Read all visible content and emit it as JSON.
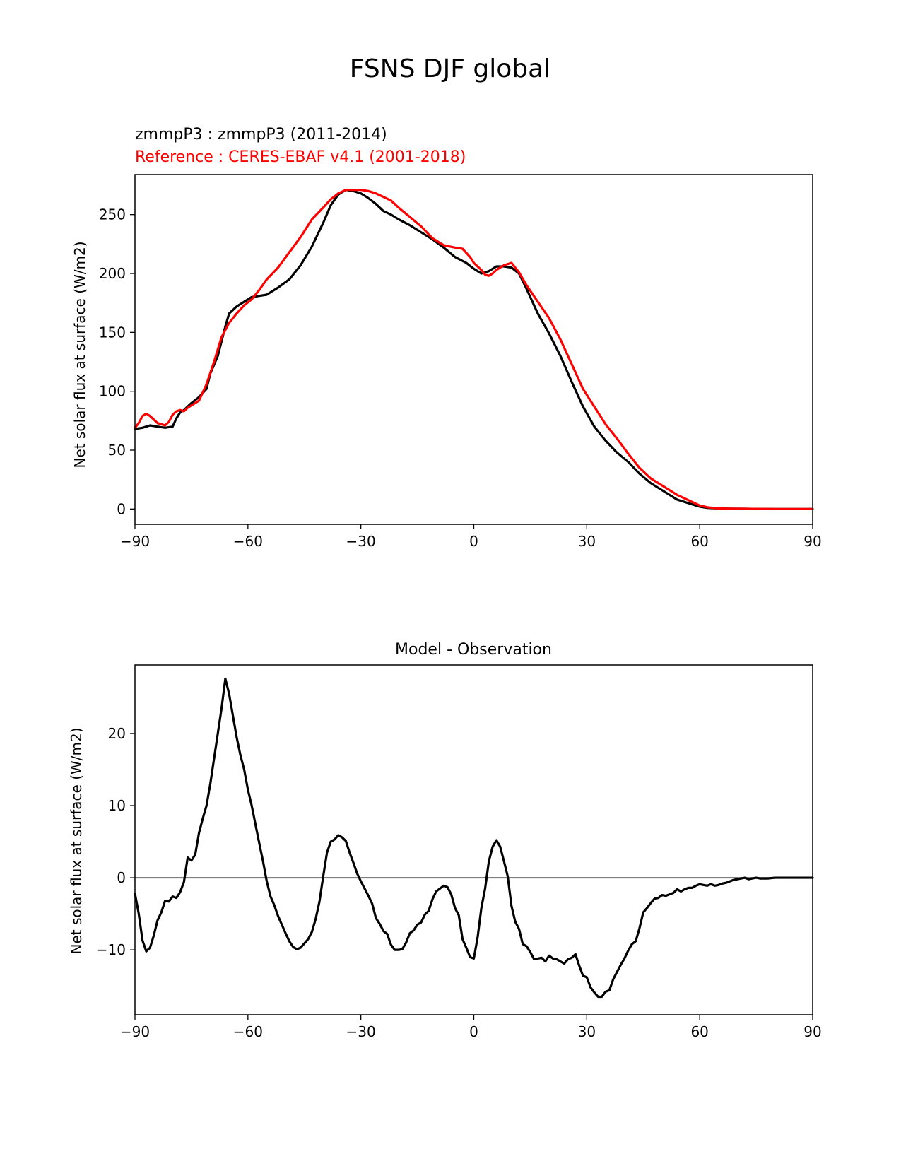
{
  "figure_title": "FSNS DJF global",
  "chart_data": [
    {
      "type": "line",
      "subtitle_test": "zmmpP3 : zmmpP3 (2011-2014)",
      "subtitle_ref": "Reference : CERES-EBAF v4.1 (2001-2018)",
      "xlabel": "",
      "ylabel": "Net solar flux at surface (W/m2)",
      "xlim": [
        -90,
        90
      ],
      "ylim": [
        -13,
        284
      ],
      "xticks": [
        -90,
        -60,
        -30,
        0,
        30,
        60,
        90
      ],
      "xtick_labels": [
        "−90",
        "−60",
        "−30",
        "0",
        "30",
        "60",
        "90"
      ],
      "yticks": [
        0,
        50,
        100,
        150,
        200,
        250
      ],
      "ytick_labels": [
        "0",
        "50",
        "100",
        "150",
        "200",
        "250"
      ],
      "grid": false,
      "series": [
        {
          "color": "#000000",
          "x": [
            -90,
            -88,
            -86,
            -84,
            -82,
            -80,
            -79,
            -78,
            -77,
            -75,
            -73,
            -71,
            -70,
            -68,
            -66,
            -65,
            -63,
            -61,
            -59,
            -57,
            -55,
            -52,
            -49,
            -46,
            -43,
            -40,
            -38,
            -36,
            -34,
            -32,
            -30,
            -28,
            -26,
            -24,
            -22,
            -20,
            -17,
            -14,
            -11,
            -8,
            -5,
            -2,
            0,
            2,
            4,
            6,
            8,
            10,
            12,
            14,
            17,
            20,
            23,
            26,
            29,
            32,
            35,
            38,
            41,
            44,
            47,
            50,
            54,
            58,
            60,
            62,
            65,
            68,
            72,
            76,
            80,
            85,
            90
          ],
          "y": [
            68,
            69,
            71,
            70,
            69,
            70,
            77,
            82,
            84,
            90,
            95,
            102,
            115,
            130,
            155,
            166,
            172,
            176,
            180,
            181,
            182,
            188,
            195,
            207,
            223,
            243,
            258,
            267,
            271,
            270,
            268,
            264,
            259,
            253,
            250,
            246,
            241,
            235,
            229,
            222,
            214,
            209,
            204,
            200,
            202,
            206,
            206,
            205,
            200,
            187,
            166,
            149,
            130,
            108,
            87,
            70,
            58,
            48,
            40,
            30,
            22,
            16,
            8,
            4,
            2,
            1,
            0.5,
            0.3,
            0.2,
            0.1,
            0,
            0,
            0
          ]
        },
        {
          "color": "#ff0000",
          "x": [
            -90,
            -89,
            -88,
            -87,
            -86,
            -85,
            -84,
            -83,
            -82,
            -81,
            -80,
            -79,
            -78,
            -77,
            -76,
            -75,
            -73,
            -71,
            -69,
            -67,
            -65,
            -63,
            -61,
            -59,
            -57,
            -55,
            -52,
            -49,
            -46,
            -43,
            -40,
            -38,
            -36,
            -34,
            -32,
            -30,
            -28,
            -26,
            -24,
            -22,
            -20,
            -17,
            -14,
            -11,
            -8,
            -5,
            -3,
            -1,
            0,
            2,
            3,
            4,
            5,
            6,
            8,
            10,
            11,
            12,
            14,
            17,
            20,
            23,
            26,
            29,
            32,
            35,
            38,
            41,
            44,
            47,
            50,
            54,
            58,
            60,
            62,
            65,
            68,
            72,
            76,
            80,
            85,
            90
          ],
          "y": [
            69,
            73,
            79,
            81,
            79,
            76,
            73,
            72,
            71,
            74,
            80,
            83,
            84,
            83,
            86,
            88,
            92,
            106,
            125,
            146,
            158,
            166,
            173,
            178,
            186,
            195,
            205,
            218,
            231,
            246,
            256,
            263,
            268,
            271,
            271,
            271,
            270,
            268,
            265,
            262,
            256,
            248,
            240,
            230,
            224,
            222,
            221,
            214,
            209,
            203,
            199,
            198,
            200,
            203,
            207,
            209,
            205,
            201,
            190,
            176,
            162,
            144,
            123,
            102,
            87,
            72,
            60,
            47,
            35,
            26,
            20,
            12,
            6,
            3,
            1.5,
            0.5,
            0.3,
            0.2,
            0.1,
            0,
            0,
            0
          ]
        }
      ]
    },
    {
      "type": "line",
      "title": "Model - Observation",
      "xlabel": "",
      "ylabel": "Net solar flux at surface (W/m2)",
      "xlim": [
        -90,
        90
      ],
      "ylim": [
        -19,
        29.5
      ],
      "xticks": [
        -90,
        -60,
        -30,
        0,
        30,
        60,
        90
      ],
      "xtick_labels": [
        "−90",
        "−60",
        "−30",
        "0",
        "30",
        "60",
        "90"
      ],
      "yticks": [
        -10,
        0,
        10,
        20
      ],
      "ytick_labels": [
        "−10",
        "0",
        "10",
        "20"
      ],
      "grid": false,
      "zero_line_color": "#808080",
      "series": [
        {
          "color": "#000000",
          "x": [
            -90,
            -89,
            -88,
            -87,
            -86,
            -85,
            -84,
            -83,
            -82,
            -81,
            -80,
            -79,
            -78,
            -77,
            -76,
            -75,
            -74,
            -73,
            -72,
            -71,
            -70,
            -69,
            -68,
            -67,
            -66,
            -65,
            -64,
            -63,
            -62,
            -61,
            -60,
            -59,
            -58,
            -57,
            -56,
            -55,
            -54,
            -53,
            -52,
            -51,
            -50,
            -49,
            -48,
            -47,
            -46,
            -45,
            -44,
            -43,
            -42,
            -41,
            -40,
            -39,
            -38,
            -37,
            -36,
            -35,
            -34,
            -33,
            -32,
            -31,
            -30,
            -29,
            -28,
            -27,
            -26,
            -25,
            -24,
            -23,
            -22,
            -21,
            -20,
            -19,
            -18,
            -17,
            -16,
            -15,
            -14,
            -13,
            -12,
            -11,
            -10,
            -9,
            -8,
            -7,
            -6,
            -5,
            -4,
            -3,
            -2,
            -1,
            0,
            1,
            2,
            3,
            4,
            5,
            6,
            7,
            8,
            9,
            10,
            11,
            12,
            13,
            14,
            15,
            16,
            17,
            18,
            19,
            20,
            21,
            22,
            23,
            24,
            25,
            26,
            27,
            28,
            29,
            30,
            31,
            32,
            33,
            34,
            35,
            36,
            37,
            38,
            39,
            40,
            41,
            42,
            43,
            44,
            45,
            46,
            47,
            48,
            49,
            50,
            51,
            52,
            53,
            54,
            55,
            56,
            57,
            58,
            59,
            60,
            61,
            62,
            63,
            64,
            65,
            66,
            67,
            68,
            69,
            70,
            71,
            72,
            73,
            74,
            75,
            76,
            78,
            80,
            82,
            84,
            86,
            88,
            90
          ],
          "y": [
            -2.2,
            -5,
            -8.7,
            -10.2,
            -9.7,
            -8,
            -5.9,
            -4.8,
            -3.2,
            -3.3,
            -2.6,
            -2.8,
            -2,
            -0.6,
            2.8,
            2.4,
            3.2,
            6.2,
            8.2,
            10,
            13,
            16.5,
            20,
            23.5,
            27.6,
            25.5,
            22.5,
            19.5,
            17,
            15,
            12.2,
            10,
            7.4,
            4.8,
            2.3,
            -0.5,
            -2.6,
            -3.8,
            -5.3,
            -6.5,
            -7.7,
            -8.8,
            -9.6,
            -9.9,
            -9.7,
            -9.1,
            -8.5,
            -7.5,
            -5.7,
            -3.3,
            0.2,
            3.5,
            5,
            5.3,
            5.9,
            5.6,
            5.1,
            3.5,
            2.1,
            0.6,
            -0.5,
            -1.5,
            -2.5,
            -3.6,
            -5.6,
            -6.4,
            -7.4,
            -7.8,
            -9.3,
            -10,
            -10,
            -9.9,
            -9,
            -7.7,
            -7.3,
            -6.5,
            -6.2,
            -5.1,
            -4.6,
            -3,
            -1.9,
            -1.5,
            -1.1,
            -1.3,
            -2.3,
            -4.2,
            -5.2,
            -8.5,
            -9.7,
            -11,
            -11.2,
            -8.3,
            -4.2,
            -1.5,
            2.3,
            4.3,
            5.2,
            4.3,
            2.3,
            0.2,
            -3.9,
            -6.1,
            -7.1,
            -9.2,
            -9.5,
            -10.3,
            -11.3,
            -11.2,
            -11.1,
            -11.6,
            -10.8,
            -11.2,
            -11.3,
            -11.6,
            -11.9,
            -11.3,
            -11.1,
            -10.6,
            -12.2,
            -13.6,
            -13.8,
            -15.2,
            -15.9,
            -16.5,
            -16.5,
            -15.8,
            -15.6,
            -14.1,
            -13.1,
            -12.1,
            -11.2,
            -10.1,
            -9.2,
            -8.8,
            -7,
            -4.8,
            -4.2,
            -3.5,
            -2.9,
            -2.8,
            -2.4,
            -2.5,
            -2.3,
            -2.1,
            -1.6,
            -1.9,
            -1.6,
            -1.4,
            -1.4,
            -1.1,
            -0.9,
            -1,
            -1.1,
            -0.9,
            -1.1,
            -1,
            -0.8,
            -0.7,
            -0.5,
            -0.3,
            -0.2,
            -0.1,
            0,
            -0.2,
            -0.1,
            0,
            -0.1,
            -0.1,
            0,
            0,
            0,
            0,
            0,
            0
          ]
        }
      ]
    }
  ]
}
